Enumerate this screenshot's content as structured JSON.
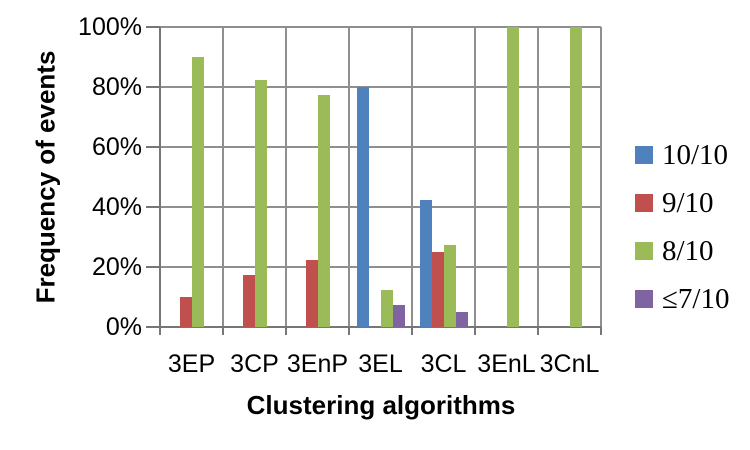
{
  "chart_data": {
    "type": "bar",
    "title": "",
    "xlabel": "Clustering algorithms",
    "ylabel": "Frequency of events",
    "categories": [
      "3EP",
      "3CP",
      "3EnP",
      "3EL",
      "3CL",
      "3EnL",
      "3CnL"
    ],
    "series": [
      {
        "name": "10/10",
        "color": "#4F81BD",
        "values": [
          0,
          0,
          0,
          80,
          42.5,
          0,
          0
        ]
      },
      {
        "name": "9/10",
        "color": "#C0504D",
        "values": [
          10,
          17.5,
          22.5,
          0,
          25,
          0,
          0
        ]
      },
      {
        "name": "8/10",
        "color": "#9BBB59",
        "values": [
          90,
          82.5,
          77.5,
          12.5,
          27.5,
          100,
          100
        ]
      },
      {
        "name": "≤7/10",
        "color": "#8064A2",
        "values": [
          0,
          0,
          0,
          7.5,
          5,
          0,
          0
        ]
      }
    ],
    "ylim": [
      0,
      100
    ],
    "y_ticks": [
      "0%",
      "20%",
      "40%",
      "60%",
      "80%",
      "100%"
    ],
    "grid": "horizontal major gridlines every 20% plus vertical category separator lines",
    "legend_position": "right",
    "colors": {
      "background": "#FFFFFF",
      "gridline": "#8F8F8F",
      "axis": "#767676",
      "text": "#000000"
    }
  }
}
